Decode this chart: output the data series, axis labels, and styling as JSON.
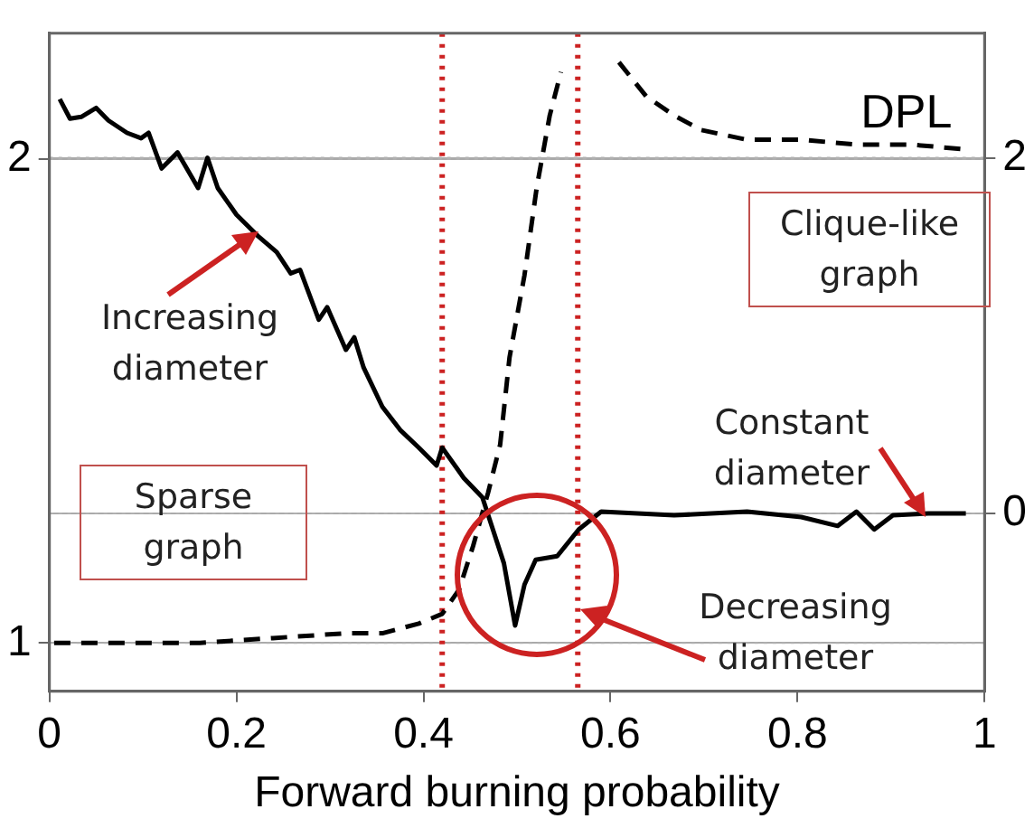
{
  "chart_data": {
    "type": "line",
    "xlabel": "Forward burning probability",
    "xlim": [
      0,
      1
    ],
    "xticks": [
      0,
      0.2,
      0.4,
      0.6,
      0.8,
      1
    ],
    "ylim": [
      0.9,
      2.26
    ],
    "yticks": [
      1,
      2
    ],
    "y2lim": [
      -1,
      2.7
    ],
    "y2ticks": [
      0,
      2
    ],
    "grid": "y",
    "legend": false,
    "marker": "none",
    "series": [
      {
        "color": "#000000",
        "axis": "y2",
        "line_style": "solid",
        "x": [
          0.011,
          0.022,
          0.034,
          0.05,
          0.063,
          0.083,
          0.098,
          0.106,
          0.12,
          0.137,
          0.159,
          0.169,
          0.18,
          0.2,
          0.223,
          0.243,
          0.258,
          0.268,
          0.288,
          0.297,
          0.317,
          0.326,
          0.336,
          0.356,
          0.375,
          0.395,
          0.414,
          0.42,
          0.443,
          0.463,
          0.486,
          0.498,
          0.508,
          0.52,
          0.543,
          0.566,
          0.59,
          0.668,
          0.746,
          0.804,
          0.843,
          0.863,
          0.882,
          0.902,
          0.94,
          0.98
        ],
        "values": [
          2.33,
          2.22,
          2.23,
          2.28,
          2.21,
          2.14,
          2.11,
          2.14,
          1.94,
          2.03,
          1.83,
          2.0,
          1.83,
          1.68,
          1.56,
          1.47,
          1.35,
          1.37,
          1.09,
          1.16,
          0.92,
          0.99,
          0.82,
          0.6,
          0.47,
          0.37,
          0.27,
          0.37,
          0.2,
          0.09,
          -0.28,
          -0.63,
          -0.4,
          -0.26,
          -0.24,
          -0.09,
          0.01,
          -0.01,
          0.01,
          -0.02,
          -0.07,
          0.01,
          -0.09,
          -0.01,
          0,
          0
        ]
      },
      {
        "name": "DPL",
        "color": "#000000",
        "axis": "y",
        "line_style": "dashed",
        "x": [
          0.005,
          0.083,
          0.161,
          0.239,
          0.317,
          0.356,
          0.395,
          0.42,
          0.438,
          0.453,
          0.469,
          0.482,
          0.492,
          0.508,
          0.521,
          0.535,
          0.547,
          0.564,
          0.59,
          0.609,
          0.638,
          0.668,
          0.697,
          0.746,
          0.804,
          0.863,
          0.921,
          0.98
        ],
        "values": [
          1.0,
          1.0,
          1.0,
          1.01,
          1.02,
          1.02,
          1.04,
          1.06,
          1.11,
          1.2,
          1.31,
          1.41,
          1.59,
          1.76,
          1.94,
          2.09,
          2.18,
          null,
          null,
          2.2,
          2.13,
          2.09,
          2.06,
          2.04,
          2.04,
          2.03,
          2.03,
          2.02
        ]
      }
    ],
    "ref_lines": [
      {
        "axis": "x",
        "value": 0.42,
        "color": "#cc2222",
        "line_style": "dotted"
      },
      {
        "axis": "x",
        "value": 0.565,
        "color": "#cc2222",
        "line_style": "dotted"
      }
    ],
    "annotations": [
      "Increasing diameter",
      "Sparse graph",
      "Clique-like graph",
      "Constant diameter",
      "Decreasing diameter"
    ]
  }
}
